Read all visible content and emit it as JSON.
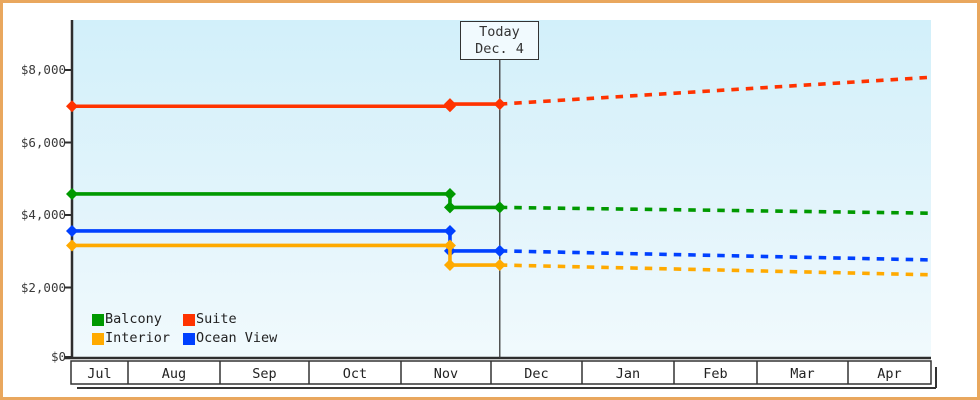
{
  "window": {
    "frame_border_color": "#e9a75e",
    "background_color": "#ffffff"
  },
  "chart_data": {
    "type": "line",
    "title": "",
    "description_colors": {
      "axis": "#2e2e2e",
      "plot_gradient_top": "#d2f0fa",
      "plot_gradient_bottom": "#f1fafd"
    },
    "today_label": {
      "line1": "Today",
      "line2": "Dec. 4"
    },
    "today_frac": 0.498,
    "change_frac": 0.44,
    "y_axis": {
      "ticks": [
        {
          "label": "$8,000",
          "value": 8000
        },
        {
          "label": "$6,000",
          "value": 6000
        },
        {
          "label": "$4,000",
          "value": 4000
        },
        {
          "label": "$2,000",
          "value": 2000
        },
        {
          "label": "$0",
          "value": 0
        }
      ],
      "ylim": [
        0,
        9380
      ],
      "grid": "off"
    },
    "x_axis": {
      "months": [
        "Jul",
        "Aug",
        "Sep",
        "Oct",
        "Nov",
        "Dec",
        "Jan",
        "Feb",
        "Mar",
        "Apr"
      ]
    },
    "series": [
      {
        "name": "Suite",
        "color": "#ff3300",
        "initial_price": 7000,
        "changed_price": 7060,
        "today_price": 7060,
        "projected_end_price": 7800
      },
      {
        "name": "Balcony",
        "color": "#009900",
        "initial_price": 4580,
        "changed_price": 4210,
        "today_price": 4210,
        "projected_end_price": 4050
      },
      {
        "name": "Ocean View",
        "color": "#0040ff",
        "initial_price": 3560,
        "changed_price": 3010,
        "today_price": 3010,
        "projected_end_price": 2760
      },
      {
        "name": "Interior",
        "color": "#ffaa00",
        "initial_price": 3160,
        "changed_price": 2620,
        "today_price": 2620,
        "projected_end_price": 2350
      }
    ],
    "legend": [
      {
        "label": "Balcony",
        "color": "#009900"
      },
      {
        "label": "Suite",
        "color": "#ff3300"
      },
      {
        "label": "Interior",
        "color": "#ffaa00"
      },
      {
        "label": "Ocean View",
        "color": "#0040ff"
      }
    ],
    "legend_position": "bottom-left-inside"
  }
}
